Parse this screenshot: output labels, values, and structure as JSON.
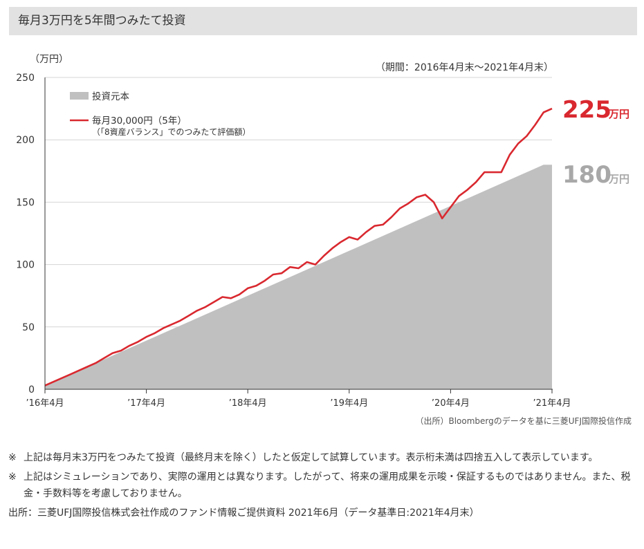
{
  "header": {
    "title": "毎月3万円を5年間つみたて投資"
  },
  "chart_data": {
    "type": "area",
    "unit_label": "（万円）",
    "period": "（期間：2016年4月末～2021年4月末）",
    "ylim": [
      0,
      250
    ],
    "yticks": [
      0,
      50,
      100,
      150,
      200,
      250
    ],
    "xticks": [
      {
        "label": "’16年4月",
        "t": 0
      },
      {
        "label": "’17年4月",
        "t": 12
      },
      {
        "label": "’18年4月",
        "t": 24
      },
      {
        "label": "’19年4月",
        "t": 36
      },
      {
        "label": "’20年4月",
        "t": 48
      },
      {
        "label": "’21年4月",
        "t": 60
      }
    ],
    "xlim": [
      0,
      60
    ],
    "grid": true,
    "legend_position": "top-left",
    "series": [
      {
        "name": "投資元本",
        "type": "area",
        "color": "#c0c0c0",
        "points": [
          [
            0,
            3
          ],
          [
            59,
            180
          ],
          [
            60,
            180
          ]
        ],
        "end_value": "180",
        "end_unit": "万円",
        "end_color": "#a8a8a8"
      },
      {
        "name": "毎月30,000円（5年）",
        "subname": "（「8資産バランス」でのつみたて評価額）",
        "type": "line",
        "color": "#d9282f",
        "points": [
          [
            0,
            3
          ],
          [
            1,
            6
          ],
          [
            2,
            9
          ],
          [
            3,
            12
          ],
          [
            4,
            15
          ],
          [
            5,
            18
          ],
          [
            6,
            21
          ],
          [
            7,
            25
          ],
          [
            8,
            29
          ],
          [
            9,
            31
          ],
          [
            10,
            35
          ],
          [
            11,
            38
          ],
          [
            12,
            42
          ],
          [
            13,
            45
          ],
          [
            14,
            49
          ],
          [
            15,
            52
          ],
          [
            16,
            55
          ],
          [
            17,
            59
          ],
          [
            18,
            63
          ],
          [
            19,
            66
          ],
          [
            20,
            70
          ],
          [
            21,
            74
          ],
          [
            22,
            73
          ],
          [
            23,
            76
          ],
          [
            24,
            81
          ],
          [
            25,
            83
          ],
          [
            26,
            87
          ],
          [
            27,
            92
          ],
          [
            28,
            93
          ],
          [
            29,
            98
          ],
          [
            30,
            97
          ],
          [
            31,
            102
          ],
          [
            32,
            100
          ],
          [
            33,
            107
          ],
          [
            34,
            113
          ],
          [
            35,
            118
          ],
          [
            36,
            122
          ],
          [
            37,
            120
          ],
          [
            38,
            126
          ],
          [
            39,
            131
          ],
          [
            40,
            132
          ],
          [
            41,
            138
          ],
          [
            42,
            145
          ],
          [
            43,
            149
          ],
          [
            44,
            154
          ],
          [
            45,
            156
          ],
          [
            46,
            150
          ],
          [
            47,
            137
          ],
          [
            48,
            146
          ],
          [
            49,
            155
          ],
          [
            50,
            160
          ],
          [
            51,
            166
          ],
          [
            52,
            174
          ],
          [
            53,
            174
          ],
          [
            54,
            174
          ],
          [
            55,
            188
          ],
          [
            56,
            197
          ],
          [
            57,
            203
          ],
          [
            58,
            212
          ],
          [
            59,
            222
          ],
          [
            60,
            225
          ]
        ],
        "end_value": "225",
        "end_unit": "万円",
        "end_color": "#d9282f"
      }
    ],
    "source_note": "（出所）Bloombergのデータを基に三菱UFJ国際投信作成"
  },
  "notes": [
    {
      "mark": "※",
      "text": "上記は毎月末3万円をつみたて投資（最終月末を除く）したと仮定して試算しています。表示桁未満は四捨五入して表示しています。"
    },
    {
      "mark": "※",
      "text": "上記はシミュレーションであり、実際の運用とは異なります。したがって、将来の運用成果を示唆・保証するものではありません。また、税金・手数料等を考慮しておりません。"
    }
  ],
  "footer": {
    "source": "出所：三菱UFJ国際投信株式会社作成のファンド情報ご提供資料 2021年6月（データ基準日:2021年4月末）"
  }
}
